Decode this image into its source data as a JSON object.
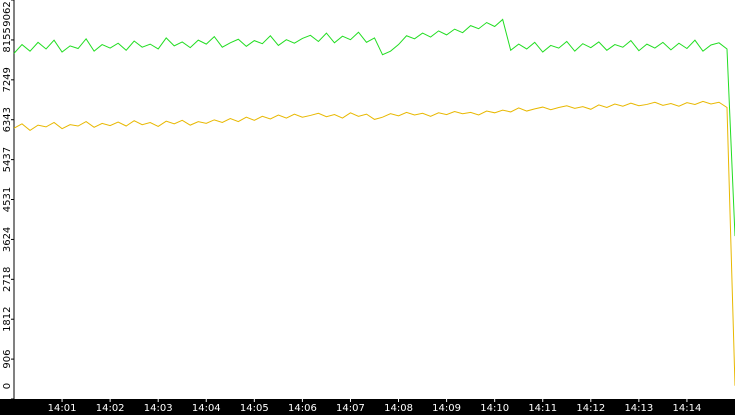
{
  "chart_data": {
    "type": "line",
    "x": [
      0,
      10,
      20,
      30,
      40,
      50,
      60,
      70,
      80,
      90,
      100,
      110,
      120,
      130,
      140,
      150,
      160,
      170,
      180,
      190,
      200,
      210,
      220,
      230,
      240,
      250,
      260,
      270,
      280,
      290,
      300,
      310,
      320,
      330,
      340,
      350,
      360,
      370,
      380,
      390,
      400,
      410,
      420,
      430,
      440,
      450,
      460,
      470,
      480,
      490,
      500,
      510,
      520,
      530,
      540,
      550,
      560,
      570,
      580,
      590,
      600,
      610,
      620,
      630,
      640,
      650,
      660,
      670,
      680,
      690,
      700,
      710,
      720,
      730,
      740,
      750,
      760,
      770,
      780,
      790,
      800,
      810,
      820,
      830,
      840,
      850,
      860,
      870,
      880,
      890,
      900
    ],
    "series": [
      {
        "color": "#22dd22",
        "values": [
          7850,
          8050,
          7900,
          8100,
          7950,
          8150,
          7880,
          8020,
          7960,
          8180,
          7900,
          8050,
          7970,
          8080,
          7920,
          8130,
          7990,
          8060,
          7950,
          8200,
          8020,
          8110,
          7980,
          8150,
          8060,
          8230,
          7990,
          8090,
          8170,
          8010,
          8140,
          8070,
          8250,
          8030,
          8160,
          8080,
          8190,
          8260,
          8120,
          8310,
          8090,
          8240,
          8160,
          8330,
          8100,
          8200,
          7820,
          7900,
          8050,
          8250,
          8180,
          8310,
          8220,
          8360,
          8270,
          8400,
          8320,
          8480,
          8410,
          8550,
          8460,
          8620,
          7920,
          8060,
          7950,
          8100,
          7880,
          8030,
          7970,
          8120,
          7900,
          8070,
          7980,
          8110,
          7920,
          8050,
          7990,
          8140,
          7910,
          8060,
          7970,
          8100,
          7930,
          8080,
          7960,
          8150,
          7900,
          8040,
          8090,
          7950,
          3700
        ]
      },
      {
        "color": "#e8b800",
        "values": [
          6150,
          6250,
          6100,
          6220,
          6180,
          6280,
          6140,
          6230,
          6200,
          6300,
          6170,
          6260,
          6210,
          6290,
          6200,
          6320,
          6230,
          6280,
          6190,
          6310,
          6250,
          6330,
          6220,
          6300,
          6260,
          6340,
          6280,
          6370,
          6300,
          6400,
          6330,
          6420,
          6360,
          6450,
          6380,
          6470,
          6400,
          6440,
          6490,
          6410,
          6460,
          6380,
          6500,
          6420,
          6470,
          6350,
          6400,
          6480,
          6430,
          6510,
          6450,
          6490,
          6420,
          6500,
          6460,
          6530,
          6480,
          6510,
          6450,
          6540,
          6500,
          6560,
          6520,
          6610,
          6540,
          6590,
          6630,
          6570,
          6620,
          6660,
          6600,
          6640,
          6580,
          6680,
          6620,
          6700,
          6650,
          6720,
          6660,
          6690,
          6740,
          6670,
          6710,
          6650,
          6730,
          6690,
          6760,
          6700,
          6740,
          6620,
          300
        ]
      }
    ],
    "xlim": [
      0,
      900
    ],
    "xticks": [
      {
        "value": 60,
        "label": "14:01"
      },
      {
        "value": 120,
        "label": "14:02"
      },
      {
        "value": 180,
        "label": "14:03"
      },
      {
        "value": 240,
        "label": "14:04"
      },
      {
        "value": 300,
        "label": "14:05"
      },
      {
        "value": 360,
        "label": "14:06"
      },
      {
        "value": 420,
        "label": "14:07"
      },
      {
        "value": 480,
        "label": "14:08"
      },
      {
        "value": 540,
        "label": "14:09"
      },
      {
        "value": 600,
        "label": "14:10"
      },
      {
        "value": 660,
        "label": "14:11"
      },
      {
        "value": 720,
        "label": "14:12"
      },
      {
        "value": 780,
        "label": "14:13"
      },
      {
        "value": 840,
        "label": "14:14"
      }
    ],
    "ylim": [
      0,
      9062
    ],
    "yticks": [
      0,
      906,
      1812,
      2718,
      3624,
      4531,
      5437,
      6343,
      7249,
      8155,
      9062
    ]
  }
}
